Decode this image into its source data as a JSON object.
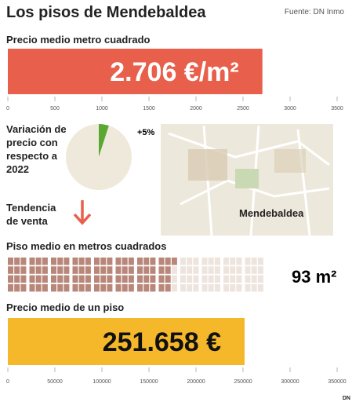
{
  "header": {
    "title": "Los pisos de  Mendebaldea",
    "source": "Fuente: DN Inmo"
  },
  "chart_data": [
    {
      "type": "bar",
      "title": "Precio medio metro cuadrado",
      "values": [
        2706
      ],
      "value_labels": [
        "2.706 €/m²"
      ],
      "color": "#e8604c",
      "xlim": [
        0,
        3500
      ],
      "xticks": [
        0,
        500,
        1000,
        1500,
        2000,
        2500,
        3000,
        3500
      ]
    },
    {
      "type": "pie",
      "title": "Variación de precio con respecto a 2022",
      "values": [
        5,
        95
      ],
      "value_labels": [
        "+5%",
        null
      ],
      "colors": [
        "#5aa832",
        "#efe9dc"
      ]
    },
    {
      "type": "waffle",
      "title": "Piso medio en metros cuadrados",
      "values": [
        93
      ],
      "value_labels": [
        "93 m²"
      ],
      "colors": [
        "#b9877a",
        "#ede4de"
      ]
    },
    {
      "type": "bar",
      "title": "Precio medio de un piso",
      "values": [
        251658
      ],
      "value_labels": [
        "251.658 €"
      ],
      "color": "#f4b82a",
      "xlim": [
        0,
        350000
      ],
      "xticks": [
        0,
        50000,
        100000,
        150000,
        200000,
        250000,
        300000,
        350000
      ]
    }
  ],
  "trend": {
    "label": "Tendencia de venta"
  },
  "map": {
    "label": "Mendebaldea"
  },
  "footer": {
    "logo": "DN"
  }
}
